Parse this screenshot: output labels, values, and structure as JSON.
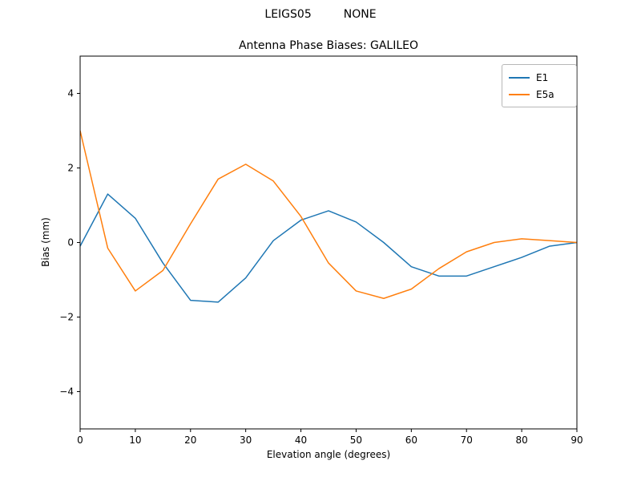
{
  "suptitle": "LEIGS05         NONE",
  "title": "Antenna Phase Biases: GALILEO",
  "chart_data": {
    "type": "line",
    "title": "Antenna Phase Biases: GALILEO",
    "xlabel": "Elevation angle (degrees)",
    "ylabel": "Bias (mm)",
    "xlim": [
      0,
      90
    ],
    "ylim": [
      -5,
      5
    ],
    "xticks": [
      0,
      10,
      20,
      30,
      40,
      50,
      60,
      70,
      80,
      90
    ],
    "yticks": [
      -4,
      -2,
      0,
      2,
      4
    ],
    "grid": false,
    "legend_position": "upper right",
    "x": [
      0,
      5,
      10,
      15,
      20,
      25,
      30,
      35,
      40,
      45,
      50,
      55,
      60,
      65,
      70,
      75,
      80,
      85,
      90
    ],
    "series": [
      {
        "name": "E1",
        "color": "#1f77b4",
        "values": [
          -0.1,
          1.3,
          0.65,
          -0.55,
          -1.55,
          -1.6,
          -0.95,
          0.05,
          0.6,
          0.85,
          0.55,
          0.0,
          -0.65,
          -0.9,
          -0.9,
          -0.65,
          -0.4,
          -0.1,
          0.0
        ]
      },
      {
        "name": "E5a",
        "color": "#ff7f0e",
        "values": [
          3.0,
          -0.15,
          -1.3,
          -0.75,
          0.5,
          1.7,
          2.1,
          1.65,
          0.7,
          -0.55,
          -1.3,
          -1.5,
          -1.25,
          -0.7,
          -0.25,
          0.0,
          0.1,
          0.05,
          0.0
        ]
      }
    ]
  }
}
